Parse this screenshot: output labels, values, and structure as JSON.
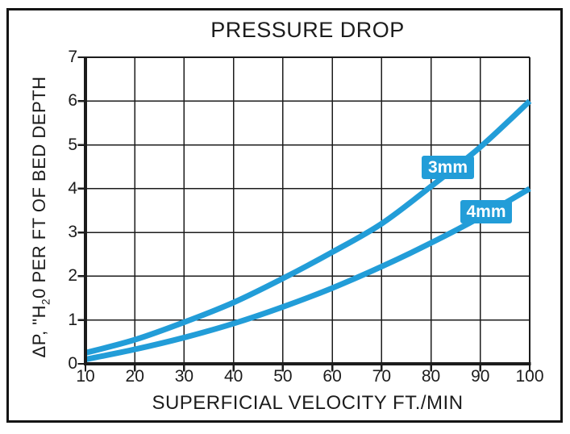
{
  "figure": {
    "background_color": "#ffffff",
    "border_color": "#141414",
    "ink_color": "#1c1c1c"
  },
  "chart_data": {
    "type": "line",
    "title": "PRESSURE DROP",
    "xlabel": "SUPERFICIAL VELOCITY FT./MIN",
    "ylabel": "ΔP, \"H₂0 PER FT OF BED DEPTH",
    "ylabel_parts": {
      "prefix": "ΔP, \"H",
      "subscript": "2",
      "suffix": "0 PER FT OF BED DEPTH"
    },
    "x": [
      10,
      20,
      30,
      40,
      50,
      60,
      70,
      80,
      90,
      100
    ],
    "x_tick_labels": [
      "10",
      "20",
      "30",
      "40",
      "50",
      "60",
      "70",
      "80",
      "90",
      "100"
    ],
    "y_ticks": [
      0,
      1,
      2,
      3,
      4,
      5,
      6,
      7
    ],
    "y_tick_labels": [
      "0",
      "1",
      "2",
      "3",
      "4",
      "5",
      "6",
      "7"
    ],
    "xlim": [
      10,
      100
    ],
    "ylim": [
      0,
      7
    ],
    "grid": true,
    "legend_position": "inline-curve-labels",
    "series": [
      {
        "name": "3mm",
        "color": "#229dd8",
        "values": [
          0.25,
          0.55,
          0.95,
          1.4,
          1.95,
          2.55,
          3.2,
          4.05,
          4.95,
          6.0
        ]
      },
      {
        "name": "4mm",
        "color": "#229dd8",
        "values": [
          0.1,
          0.33,
          0.6,
          0.92,
          1.3,
          1.73,
          2.22,
          2.76,
          3.35,
          4.0
        ]
      }
    ]
  }
}
